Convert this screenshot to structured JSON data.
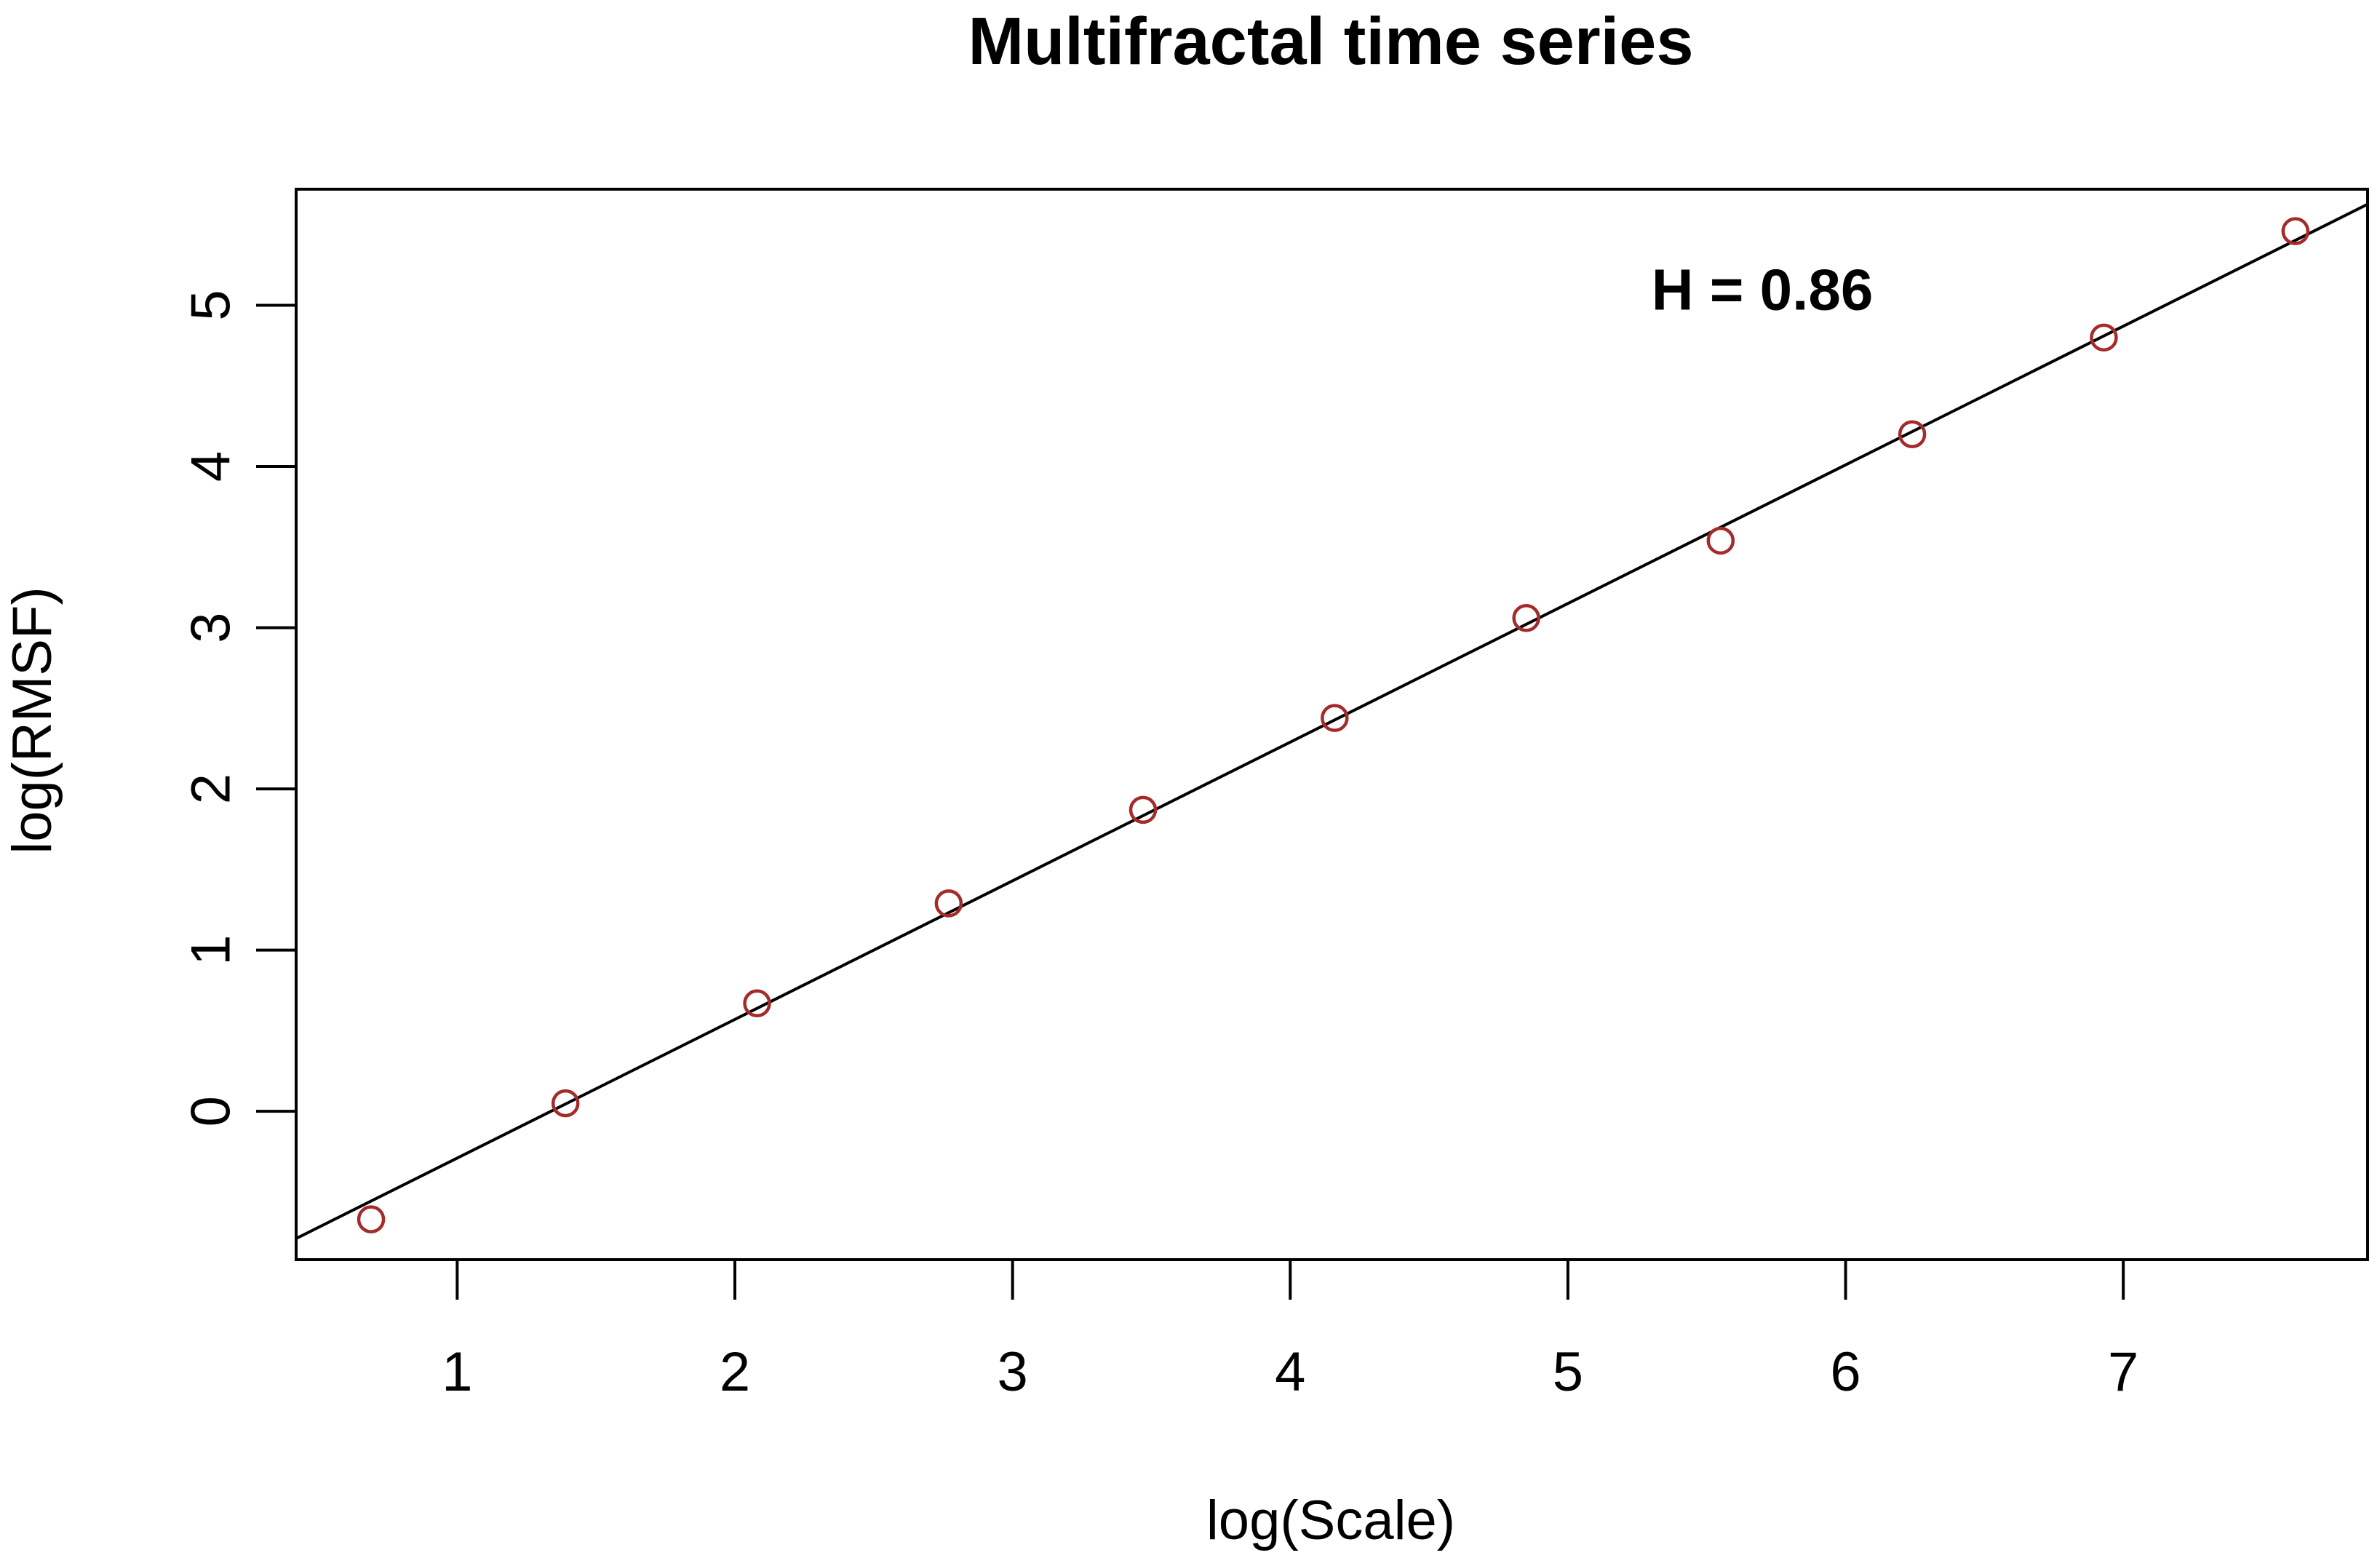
{
  "chart_data": {
    "type": "scatter",
    "title": "Multifractal time series",
    "xlabel": "log(Scale)",
    "ylabel": "log(RMSF)",
    "xlim": [
      0.42,
      7.88
    ],
    "ylim": [
      -0.92,
      5.72
    ],
    "x_ticks": [
      1,
      2,
      3,
      4,
      5,
      6,
      7
    ],
    "y_ticks": [
      0,
      1,
      2,
      3,
      4,
      5
    ],
    "grid": false,
    "legend": "none",
    "series": [
      {
        "marker": "open-circle",
        "color": "#a52a2a",
        "points": [
          {
            "x": 0.69,
            "y": -0.67
          },
          {
            "x": 1.39,
            "y": 0.05
          },
          {
            "x": 2.08,
            "y": 0.67
          },
          {
            "x": 2.77,
            "y": 1.29
          },
          {
            "x": 3.47,
            "y": 1.87
          },
          {
            "x": 4.16,
            "y": 2.44
          },
          {
            "x": 4.85,
            "y": 3.06
          },
          {
            "x": 5.55,
            "y": 3.54
          },
          {
            "x": 6.24,
            "y": 4.2
          },
          {
            "x": 6.93,
            "y": 4.8
          },
          {
            "x": 7.62,
            "y": 5.46
          }
        ]
      }
    ],
    "fit_line": {
      "color": "#000000",
      "slope": 0.86,
      "intercept": -1.15
    },
    "annotation": {
      "text": "H = 0.86",
      "x": 5.7,
      "y": 5.1
    }
  }
}
